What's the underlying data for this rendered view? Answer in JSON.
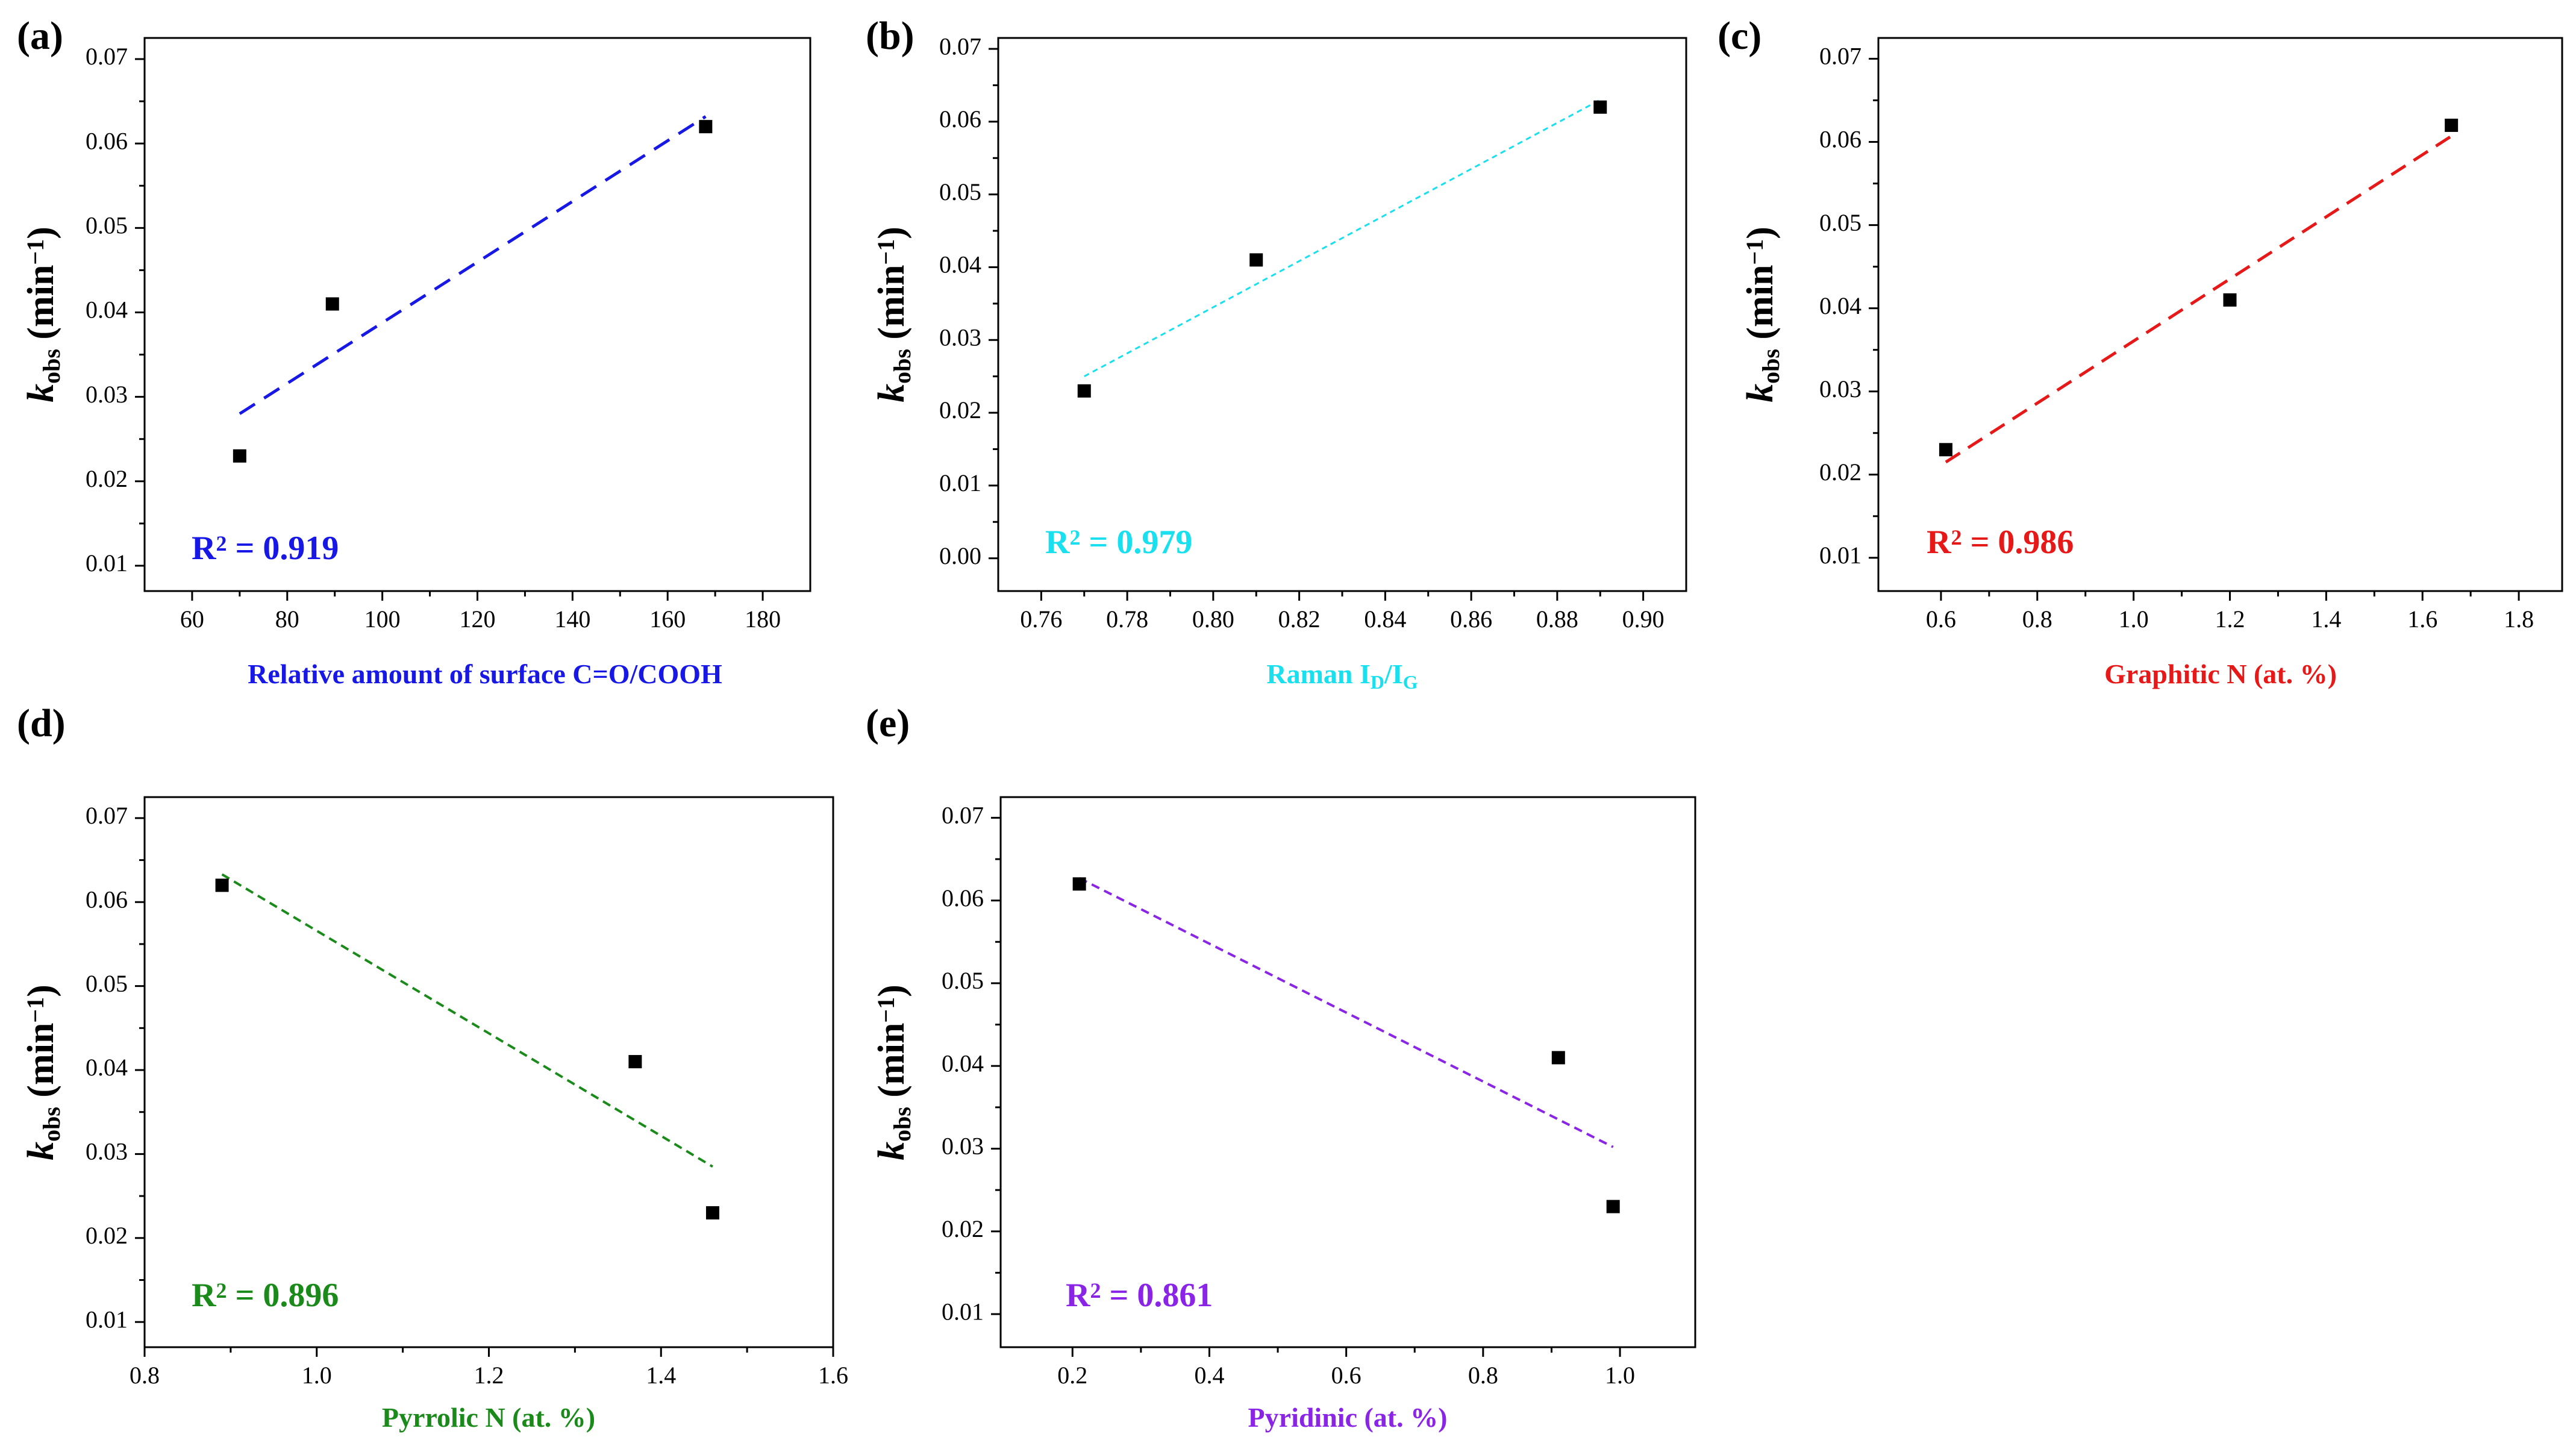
{
  "chart_data": [
    {
      "type": "scatter",
      "panel": "(a)",
      "xlabel": "Relative amount of surface C=O/COOH",
      "ylabel": {
        "main": "k",
        "sub": "obs",
        "unit_open": " (min",
        "sup": "−1",
        "unit_close": ")"
      },
      "xlim": [
        50,
        190
      ],
      "ylim": [
        0.007,
        0.0725
      ],
      "xticks": [
        60,
        80,
        100,
        120,
        140,
        160,
        180
      ],
      "xtick_labels": [
        "60",
        "80",
        "100",
        "120",
        "140",
        "160",
        "180"
      ],
      "yticks": [
        0.01,
        0.02,
        0.03,
        0.04,
        0.05,
        0.06,
        0.07
      ],
      "ytick_labels": [
        "0.01",
        "0.02",
        "0.03",
        "0.04",
        "0.05",
        "0.06",
        "0.07"
      ],
      "x": [
        70,
        89.5,
        168
      ],
      "y": [
        0.023,
        0.041,
        0.062
      ],
      "fit": {
        "x": [
          70,
          168
        ],
        "y": [
          0.028,
          0.0632
        ]
      },
      "annotation": {
        "base": "R",
        "sup": "2",
        "rest": " = 0.919"
      },
      "color": "#1818e6",
      "dash": "30,18",
      "stroke": 5
    },
    {
      "type": "scatter",
      "panel": "(b)",
      "xlabel": {
        "main": "Raman I",
        "sub1": "D",
        "mid": "/I",
        "sub2": "G"
      },
      "ylabel": {
        "main": "k",
        "sub": "obs",
        "unit_open": " (min",
        "sup": "−1",
        "unit_close": ")"
      },
      "xlim": [
        0.75,
        0.91
      ],
      "ylim": [
        -0.0045,
        0.0715
      ],
      "xticks": [
        0.76,
        0.78,
        0.8,
        0.82,
        0.84,
        0.86,
        0.88,
        0.9
      ],
      "xtick_labels": [
        "0.76",
        "0.78",
        "0.80",
        "0.82",
        "0.84",
        "0.86",
        "0.88",
        "0.90"
      ],
      "yticks": [
        0,
        0.01,
        0.02,
        0.03,
        0.04,
        0.05,
        0.06,
        0.07
      ],
      "ytick_labels": [
        "0.00",
        "0.01",
        "0.02",
        "0.03",
        "0.04",
        "0.05",
        "0.06",
        "0.07"
      ],
      "x": [
        0.77,
        0.81,
        0.89
      ],
      "y": [
        0.023,
        0.041,
        0.062
      ],
      "fit": {
        "x": [
          0.77,
          0.89
        ],
        "y": [
          0.025,
          0.063
        ]
      },
      "annotation": {
        "base": "R",
        "sup": "2",
        "rest": " = 0.979"
      },
      "color": "#19e0ee",
      "dash": "9,7",
      "stroke": 3
    },
    {
      "type": "scatter",
      "panel": "(c)",
      "xlabel": "Graphitic N (at. %)",
      "ylabel": {
        "main": "k",
        "sub": "obs",
        "unit_open": " (min",
        "sup": "−1",
        "unit_close": ")"
      },
      "xlim": [
        0.47,
        1.89
      ],
      "ylim": [
        0.006,
        0.0725
      ],
      "xticks": [
        0.6,
        0.8,
        1.0,
        1.2,
        1.4,
        1.6,
        1.8
      ],
      "xtick_labels": [
        "0.6",
        "0.8",
        "1.0",
        "1.2",
        "1.4",
        "1.6",
        "1.8"
      ],
      "yticks": [
        0.01,
        0.02,
        0.03,
        0.04,
        0.05,
        0.06,
        0.07
      ],
      "ytick_labels": [
        "0.01",
        "0.02",
        "0.03",
        "0.04",
        "0.05",
        "0.06",
        "0.07"
      ],
      "x": [
        0.61,
        1.2,
        1.66
      ],
      "y": [
        0.023,
        0.041,
        0.062
      ],
      "fit": {
        "x": [
          0.61,
          1.66
        ],
        "y": [
          0.0215,
          0.0607
        ]
      },
      "annotation": {
        "base": "R",
        "sup": "2",
        "rest": " = 0.986"
      },
      "color": "#e61818",
      "dash": "28,16",
      "stroke": 5
    },
    {
      "type": "scatter",
      "panel": "(d)",
      "xlabel": "Pyrrolic N (at. %)",
      "ylabel": {
        "main": "k",
        "sub": "obs",
        "unit_open": " (min",
        "sup": "−1",
        "unit_close": ")"
      },
      "xlim": [
        0.8,
        1.6
      ],
      "ylim": [
        0.007,
        0.0725
      ],
      "xticks": [
        0.8,
        1.0,
        1.2,
        1.4,
        1.6
      ],
      "xtick_labels": [
        "0.8",
        "1.0",
        "1.2",
        "1.4",
        "1.6"
      ],
      "yticks": [
        0.01,
        0.02,
        0.03,
        0.04,
        0.05,
        0.06,
        0.07
      ],
      "ytick_labels": [
        "0.01",
        "0.02",
        "0.03",
        "0.04",
        "0.05",
        "0.06",
        "0.07"
      ],
      "x": [
        0.89,
        1.37,
        1.46
      ],
      "y": [
        0.062,
        0.041,
        0.023
      ],
      "fit": {
        "x": [
          0.89,
          1.46
        ],
        "y": [
          0.0633,
          0.0285
        ]
      },
      "annotation": {
        "base": "R",
        "sup": "2",
        "rest": " = 0.896"
      },
      "color": "#1a8a1a",
      "dash": "14,9",
      "stroke": 4
    },
    {
      "type": "scatter",
      "panel": "(e)",
      "xlabel": "Pyridinic (at. %)",
      "ylabel": {
        "main": "k",
        "sub": "obs",
        "unit_open": " (min",
        "sup": "−1",
        "unit_close": ")"
      },
      "xlim": [
        0.095,
        1.11
      ],
      "ylim": [
        0.006,
        0.0725
      ],
      "xticks": [
        0.2,
        0.4,
        0.6,
        0.8,
        1.0
      ],
      "xtick_labels": [
        "0.2",
        "0.4",
        "0.6",
        "0.8",
        "1.0"
      ],
      "yticks": [
        0.01,
        0.02,
        0.03,
        0.04,
        0.05,
        0.06,
        0.07
      ],
      "ytick_labels": [
        "0.01",
        "0.02",
        "0.03",
        "0.04",
        "0.05",
        "0.06",
        "0.07"
      ],
      "x": [
        0.21,
        0.91,
        0.99
      ],
      "y": [
        0.062,
        0.041,
        0.023
      ],
      "fit": {
        "x": [
          0.21,
          0.99
        ],
        "y": [
          0.0627,
          0.0302
        ]
      },
      "annotation": {
        "base": "R",
        "sup": "2",
        "rest": " = 0.861"
      },
      "color": "#8a24e6",
      "dash": "14,9",
      "stroke": 4
    }
  ]
}
